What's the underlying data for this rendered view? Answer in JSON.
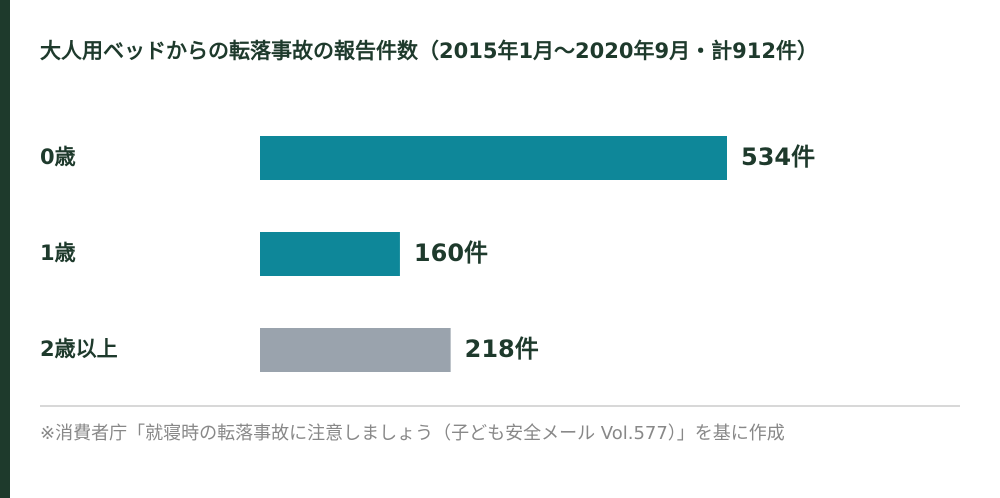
{
  "chart_data": {
    "type": "bar",
    "orientation": "horizontal",
    "title": "大人用ベッドからの転落事故の報告件数（2015年1月～2020年9月・計912件）",
    "categories": [
      "0歳",
      "1歳",
      "2歳以上"
    ],
    "values": [
      534,
      160,
      218
    ],
    "value_labels": [
      "534件",
      "160件",
      "218件"
    ],
    "colors": [
      "#0e8799",
      "#0e8799",
      "#9aa3ad"
    ],
    "note": "※消費者庁「就寝時の転落事故に注意しましょう（子ども安全メール Vol.577）」を基に作成"
  }
}
